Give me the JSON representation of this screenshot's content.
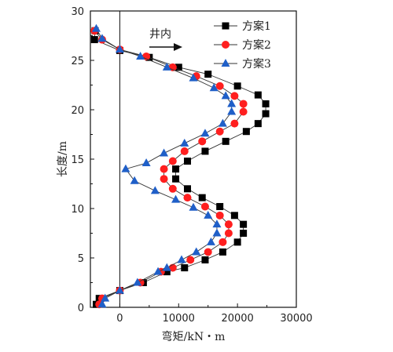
{
  "chart_data": {
    "type": "line",
    "xlabel": "弯矩/kN・m",
    "ylabel": "长度/m",
    "xlim": [
      -5000,
      30000
    ],
    "ylim": [
      0,
      30
    ],
    "xticks": [
      0,
      10000,
      20000,
      30000
    ],
    "yticks": [
      0,
      5,
      10,
      15,
      20,
      25,
      30
    ],
    "zero_line": true,
    "annotation": {
      "text": "井内",
      "arrow": "right"
    },
    "legend_position": "top-right",
    "series": [
      {
        "name": "方案1",
        "color": "#000000",
        "marker": "square",
        "points": [
          [
            -4200,
            28.0
          ],
          [
            -4300,
            27.1
          ],
          [
            0,
            26.0
          ],
          [
            5000,
            25.3
          ],
          [
            10000,
            24.3
          ],
          [
            15000,
            23.6
          ],
          [
            20000,
            22.4
          ],
          [
            23500,
            21.5
          ],
          [
            24800,
            20.6
          ],
          [
            24800,
            19.6
          ],
          [
            23500,
            18.6
          ],
          [
            21500,
            17.8
          ],
          [
            18000,
            16.8
          ],
          [
            14500,
            15.8
          ],
          [
            11500,
            14.8
          ],
          [
            9500,
            14.0
          ],
          [
            9500,
            13.0
          ],
          [
            11500,
            12.0
          ],
          [
            14000,
            11.1
          ],
          [
            17000,
            10.2
          ],
          [
            19500,
            9.3
          ],
          [
            21000,
            8.4
          ],
          [
            21000,
            7.5
          ],
          [
            20000,
            6.6
          ],
          [
            17500,
            5.6
          ],
          [
            14500,
            4.8
          ],
          [
            11000,
            4.0
          ],
          [
            8000,
            3.6
          ],
          [
            4000,
            2.5
          ],
          [
            0,
            1.7
          ],
          [
            -3500,
            0.9
          ],
          [
            -4000,
            0.3
          ]
        ]
      },
      {
        "name": "方案2",
        "color": "#ff1f1f",
        "marker": "circle",
        "points": [
          [
            -4300,
            28.0
          ],
          [
            -3000,
            27.1
          ],
          [
            0,
            26.1
          ],
          [
            4500,
            25.4
          ],
          [
            9000,
            24.3
          ],
          [
            13000,
            23.4
          ],
          [
            17000,
            22.4
          ],
          [
            19500,
            21.4
          ],
          [
            21000,
            20.6
          ],
          [
            21000,
            19.8
          ],
          [
            19500,
            18.6
          ],
          [
            17000,
            17.8
          ],
          [
            14000,
            16.8
          ],
          [
            11000,
            15.8
          ],
          [
            9000,
            14.8
          ],
          [
            7500,
            14.0
          ],
          [
            7500,
            13.0
          ],
          [
            9000,
            12.0
          ],
          [
            11500,
            11.1
          ],
          [
            14500,
            10.2
          ],
          [
            17000,
            9.3
          ],
          [
            18500,
            8.4
          ],
          [
            18500,
            7.5
          ],
          [
            17500,
            6.6
          ],
          [
            15000,
            5.6
          ],
          [
            12000,
            4.8
          ],
          [
            9000,
            4.0
          ],
          [
            7000,
            3.6
          ],
          [
            3500,
            2.5
          ],
          [
            0,
            1.7
          ],
          [
            -3000,
            0.9
          ],
          [
            -3500,
            0.3
          ]
        ]
      },
      {
        "name": "方案3",
        "color": "#1f5fc8",
        "marker": "triangle",
        "points": [
          [
            -4000,
            28.2
          ],
          [
            -3000,
            27.2
          ],
          [
            0,
            26.1
          ],
          [
            3500,
            25.4
          ],
          [
            8000,
            24.3
          ],
          [
            12500,
            23.2
          ],
          [
            16000,
            22.2
          ],
          [
            18000,
            21.4
          ],
          [
            19000,
            20.6
          ],
          [
            19000,
            19.8
          ],
          [
            17500,
            18.6
          ],
          [
            14500,
            17.6
          ],
          [
            11000,
            16.6
          ],
          [
            7500,
            15.6
          ],
          [
            4500,
            14.6
          ],
          [
            1000,
            14.0
          ],
          [
            2500,
            12.8
          ],
          [
            6000,
            11.8
          ],
          [
            9500,
            10.9
          ],
          [
            12500,
            10.1
          ],
          [
            15000,
            9.3
          ],
          [
            16500,
            8.4
          ],
          [
            16500,
            7.5
          ],
          [
            15500,
            6.6
          ],
          [
            13000,
            5.6
          ],
          [
            10500,
            4.8
          ],
          [
            8000,
            4.0
          ],
          [
            6500,
            3.6
          ],
          [
            3000,
            2.5
          ],
          [
            0,
            1.7
          ],
          [
            -2500,
            0.9
          ],
          [
            -3000,
            0.3
          ]
        ]
      }
    ]
  }
}
